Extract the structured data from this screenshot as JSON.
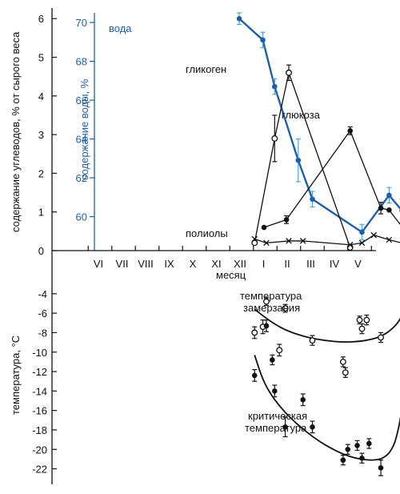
{
  "colors": {
    "water": "#1f5fa8",
    "water_err": "#4aa6d8",
    "ink": "#111111"
  },
  "chart_data": [
    {
      "type": "line",
      "xlabel": "месяц",
      "ylabel": "содержание углеводов, % от сырого веса",
      "ylabel2": "содержание воды, %",
      "categories": [
        "VI",
        "VII",
        "VIII",
        "IX",
        "X",
        "XI",
        "XII",
        "I",
        "II",
        "III",
        "IV",
        "V"
      ],
      "ylim": [
        0,
        6.15
      ],
      "yticks": [
        "0",
        "1",
        "2",
        "3",
        "4",
        "5",
        "6"
      ],
      "ylim2": [
        58.25,
        70.5
      ],
      "yticks2": [
        "60",
        "62",
        "64",
        "66",
        "68",
        "70"
      ],
      "grid": false,
      "series": [
        {
          "name": "вода",
          "axis": "right",
          "marker": "filled-circle",
          "x": [
            5.9,
            6.9,
            7.4,
            8.4,
            9.0,
            11.1,
            12.25,
            12.8,
            13.1
          ],
          "y": [
            70.2,
            69.1,
            66.7,
            62.9,
            60.9,
            59.2,
            61.1,
            60.3,
            66.8
          ],
          "err": [
            0.3,
            0.4,
            0.4,
            1.1,
            0.4,
            0.4,
            0.4,
            0.6,
            0.8
          ]
        },
        {
          "name": "гликоген",
          "axis": "left",
          "marker": "open-circle",
          "x": [
            6.55,
            7.4,
            8.0,
            10.6
          ],
          "y": [
            0.2,
            2.9,
            4.6,
            0.08
          ],
          "err": [
            0,
            0.6,
            0.2,
            0
          ]
        },
        {
          "name": "глюкоза",
          "axis": "left",
          "marker": "filled-circle",
          "x": [
            6.95,
            7.9,
            10.6,
            11.9,
            12.25,
            13.1
          ],
          "y": [
            0.6,
            0.8,
            3.1,
            1.1,
            1.05,
            0.38
          ],
          "err": [
            0,
            0.1,
            0.1,
            0.15,
            0,
            0
          ]
        },
        {
          "name": "полиолы",
          "axis": "left",
          "marker": "cross",
          "x": [
            6.55,
            7.05,
            8.0,
            8.6,
            10.6,
            11.1,
            11.6,
            12.25,
            13.1
          ],
          "y": [
            0.3,
            0.2,
            0.25,
            0.25,
            0.15,
            0.2,
            0.4,
            0.28,
            0.15
          ],
          "err": [
            0,
            0,
            0,
            0,
            0,
            0,
            0,
            0,
            0
          ]
        }
      ]
    },
    {
      "type": "scatter",
      "ylabel": "температура, °С",
      "ylim": [
        -23.6,
        -2.2
      ],
      "yticks": [
        "-4",
        "-6",
        "-8",
        "-10",
        "-12",
        "-14",
        "-16",
        "-18",
        "-20",
        "-22"
      ],
      "series": [
        {
          "name": "температура замерзания",
          "marker": "open-circle",
          "x": [
            6.55,
            6.9,
            7.05,
            7.6,
            7.85,
            9.0,
            10.3,
            10.4,
            11.0,
            11.1,
            11.3,
            11.9,
            13.1,
            13.1
          ],
          "y": [
            -8.0,
            -7.4,
            -4.8,
            -9.8,
            -5.5,
            -8.8,
            -11.0,
            -12.1,
            -6.7,
            -7.6,
            -6.7,
            -8.5,
            -3.8,
            -4.7
          ],
          "err": [
            0.6,
            0.7,
            0.4,
            0.6,
            0.4,
            0.5,
            0.5,
            0.5,
            0.4,
            0.5,
            0.5,
            0.5,
            0.4,
            0.4
          ],
          "trend_x": [
            6.55,
            7.3,
            8.0,
            8.8,
            9.5,
            10.3,
            11.0,
            11.5,
            11.9,
            12.3,
            12.7,
            13.1
          ],
          "trend_y": [
            -5.6,
            -7.0,
            -7.9,
            -8.5,
            -8.8,
            -9.0,
            -8.9,
            -8.7,
            -8.4,
            -7.8,
            -6.8,
            -4.7
          ]
        },
        {
          "name": "критическая температура",
          "marker": "filled-circle",
          "x": [
            6.55,
            7.05,
            7.3,
            7.4,
            7.85,
            8.6,
            9.0,
            10.3,
            10.5,
            10.9,
            11.1,
            11.4,
            11.9,
            13.1,
            13.3
          ],
          "y": [
            -12.4,
            -7.3,
            -10.8,
            -14.0,
            -17.7,
            -14.9,
            -17.7,
            -21.1,
            -20.0,
            -19.6,
            -20.9,
            -19.4,
            -21.9,
            -8.4,
            -14.2
          ],
          "err": [
            0.6,
            0.6,
            0.5,
            0.6,
            1.0,
            0.6,
            0.6,
            0.5,
            0.5,
            0.5,
            0.5,
            0.5,
            0.8,
            2.2,
            1.2
          ],
          "trend_x": [
            6.55,
            6.9,
            7.3,
            7.8,
            8.3,
            8.8,
            9.3,
            9.8,
            10.3,
            10.8,
            11.3,
            11.7,
            12.0,
            12.3,
            12.55,
            12.8,
            13.05
          ],
          "trend_y": [
            -10.3,
            -12.9,
            -14.6,
            -16.1,
            -17.3,
            -18.3,
            -19.2,
            -19.9,
            -20.5,
            -20.9,
            -21.1,
            -21.1,
            -20.9,
            -20.3,
            -19.0,
            -16.0,
            -11.0
          ]
        }
      ],
      "label_lines": [
        [
          "температура",
          "замерзания"
        ],
        [
          "критическая",
          "температура"
        ]
      ]
    }
  ]
}
